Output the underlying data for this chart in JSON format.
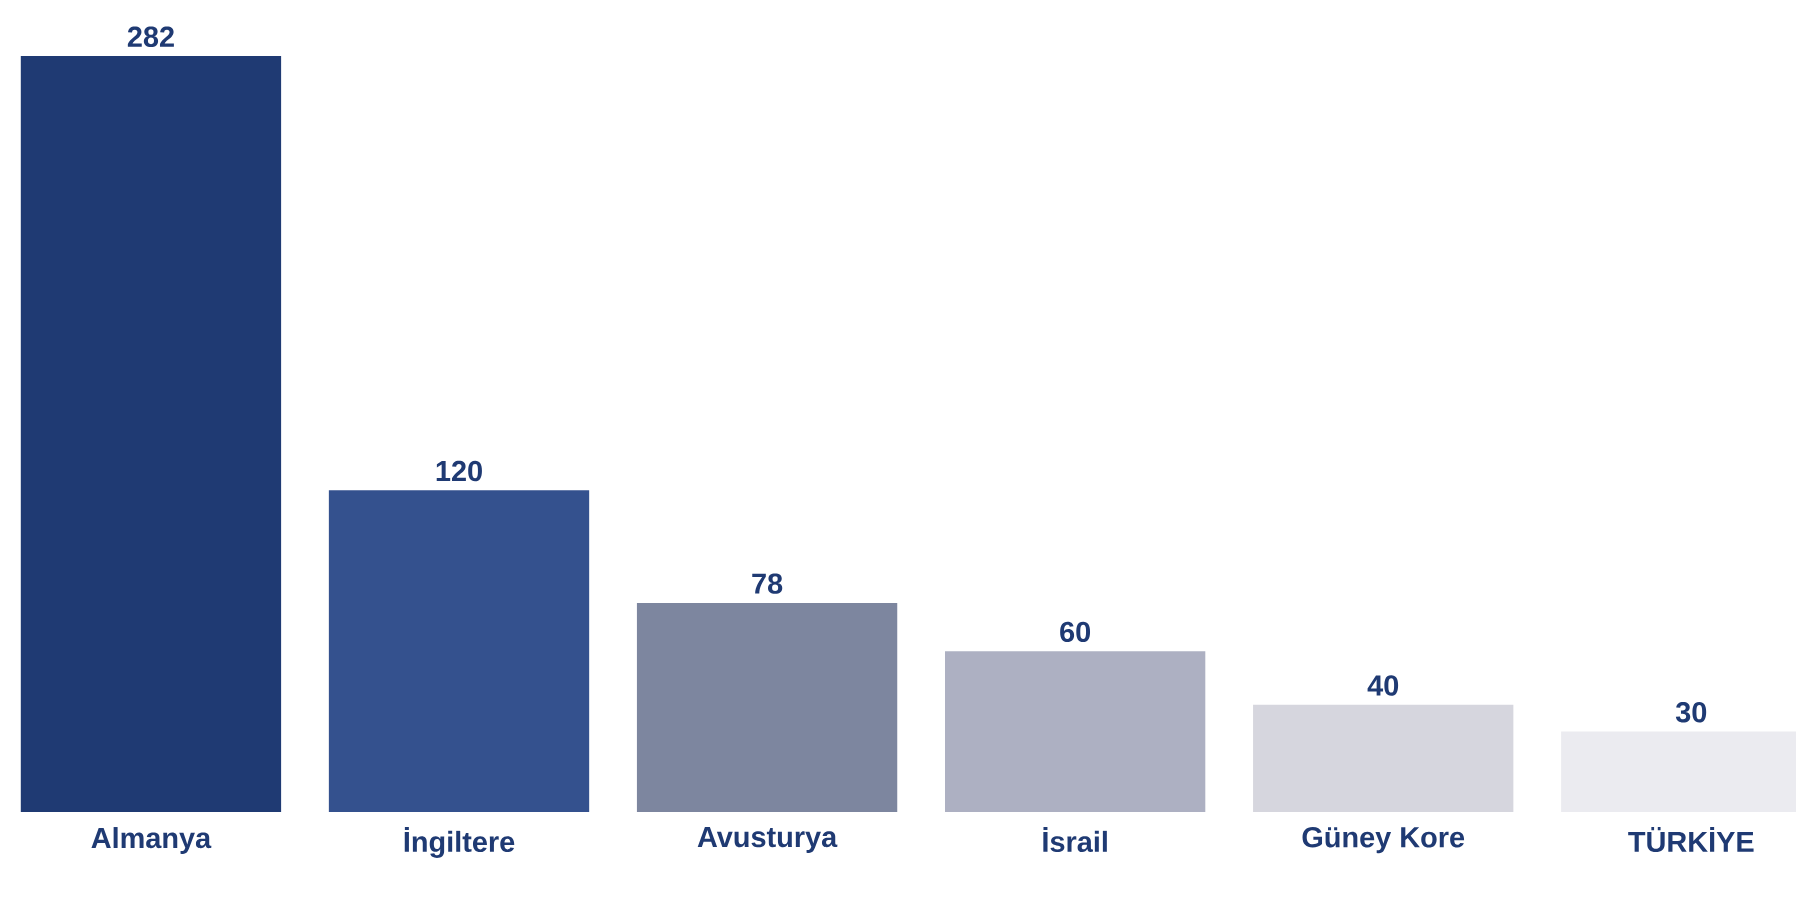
{
  "chart_data": {
    "type": "bar",
    "categories": [
      "Almanya",
      "İngiltere",
      "Avusturya",
      "İsrail",
      "Güney Kore",
      "TÜRKİYE"
    ],
    "values": [
      282,
      120,
      78,
      60,
      40,
      30
    ],
    "colors": [
      "#1f3a73",
      "#34518e",
      "#7d869f",
      "#adb0c2",
      "#d6d6de",
      "#ebebf0"
    ],
    "data_labels": true
  }
}
